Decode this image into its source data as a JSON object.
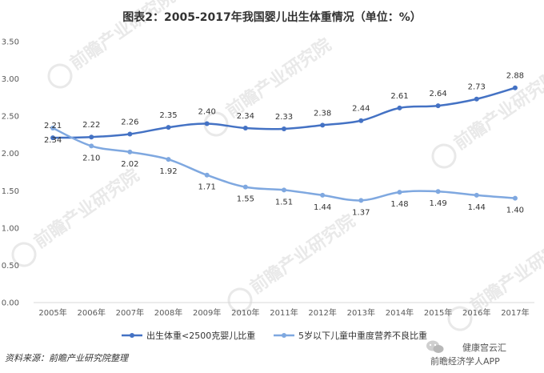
{
  "chart_data": {
    "type": "line",
    "title": "图表2：2005-2017年我国婴儿出生体重情况（单位：%）",
    "categories": [
      "2005年",
      "2006年",
      "2007年",
      "2008年",
      "2009年",
      "2010年",
      "2011年",
      "2012年",
      "2013年",
      "2014年",
      "2015年",
      "2016年",
      "2017年"
    ],
    "y_ticks": [
      "0.00",
      "0.50",
      "1.00",
      "1.50",
      "2.00",
      "2.50",
      "3.00",
      "3.50"
    ],
    "ylim": [
      0,
      3.5
    ],
    "grid": "none",
    "legend_position": "bottom",
    "series": [
      {
        "name": "出生体重<2500克婴儿比重",
        "color": "#4472c4",
        "values": [
          2.21,
          2.22,
          2.26,
          2.35,
          2.4,
          2.34,
          2.33,
          2.38,
          2.44,
          2.61,
          2.64,
          2.73,
          2.88
        ],
        "labels": [
          "2.21",
          "2.22",
          "2.26",
          "2.35",
          "2.40",
          "2.34",
          "2.33",
          "2.38",
          "2.44",
          "2.61",
          "2.64",
          "2.73",
          "2.88"
        ]
      },
      {
        "name": "5岁以下儿童中重度营养不良比重",
        "color": "#7fa8e0",
        "values": [
          2.34,
          2.1,
          2.02,
          1.92,
          1.71,
          1.55,
          1.51,
          1.44,
          1.37,
          1.48,
          1.49,
          1.44,
          1.4
        ],
        "labels": [
          "2.34",
          "2.10",
          "2.02",
          "1.92",
          "1.71",
          "1.55",
          "1.51",
          "1.44",
          "1.37",
          "1.48",
          "1.49",
          "1.44",
          "1.40"
        ]
      }
    ]
  },
  "source": "资料来源：前瞻产业研究院整理",
  "watermark": {
    "name": "前瞻产业研究院",
    "app_text": "前瞻经济学人APP",
    "badge_text": "健康宫云汇"
  }
}
